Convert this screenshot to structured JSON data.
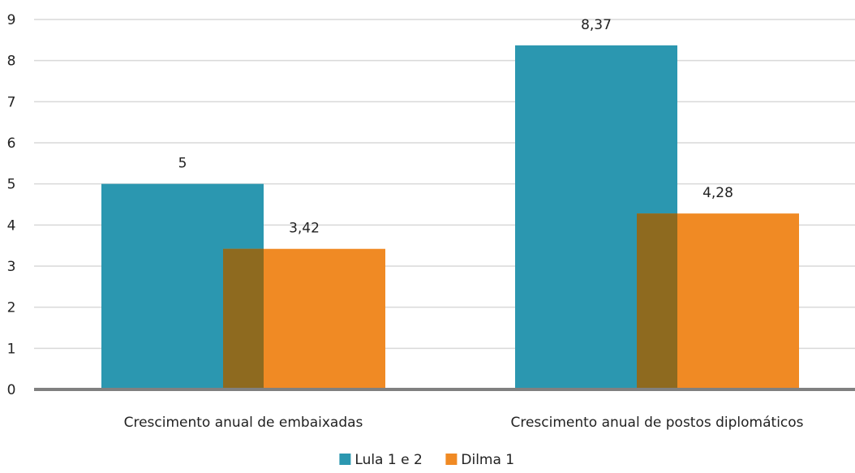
{
  "chart_data": {
    "type": "bar",
    "categories": [
      "Crescimento anual de embaixadas",
      "Crescimento anual de postos diplomáticos"
    ],
    "series": [
      {
        "name": "Lula 1 e 2",
        "values": [
          5,
          8.37
        ],
        "labels": [
          "5",
          "8,37"
        ],
        "color": "#2b97b0"
      },
      {
        "name": "Dilma 1",
        "values": [
          3.42,
          4.28
        ],
        "labels": [
          "3,42",
          "4,28"
        ],
        "color": "#f08a24"
      }
    ],
    "overlap_color": "#8e6a1f",
    "title": "",
    "xlabel": "",
    "ylabel": "",
    "ylim": [
      0,
      9
    ],
    "yticks": [
      0,
      1,
      2,
      3,
      4,
      5,
      6,
      7,
      8,
      9
    ],
    "grid": true,
    "legend_position": "bottom"
  }
}
